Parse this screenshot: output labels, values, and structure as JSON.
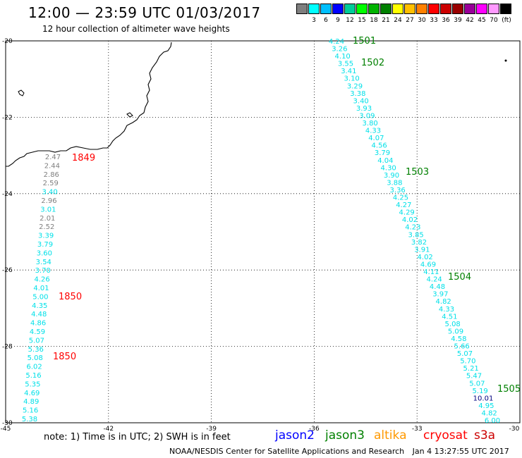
{
  "header": {
    "title": "12:00 — 23:59 UTC 01/03/2017",
    "subtitle": "12 hour collection of altimeter wave heights"
  },
  "legend": {
    "unit": "(ft)",
    "swatches": [
      {
        "color": "#7f7f7f",
        "label": ""
      },
      {
        "color": "#00ffff",
        "label": "3"
      },
      {
        "color": "#00bfff",
        "label": "6"
      },
      {
        "color": "#0000ff",
        "label": "9"
      },
      {
        "color": "#00cc99",
        "label": "12"
      },
      {
        "color": "#00ff00",
        "label": "15"
      },
      {
        "color": "#00b300",
        "label": "18"
      },
      {
        "color": "#008000",
        "label": "21"
      },
      {
        "color": "#ffff00",
        "label": "24"
      },
      {
        "color": "#ffbf00",
        "label": "27"
      },
      {
        "color": "#ff8000",
        "label": "30"
      },
      {
        "color": "#ff0000",
        "label": "33"
      },
      {
        "color": "#cc0000",
        "label": "36"
      },
      {
        "color": "#990000",
        "label": "39"
      },
      {
        "color": "#990099",
        "label": "42"
      },
      {
        "color": "#ff00ff",
        "label": "45"
      },
      {
        "color": "#ff99ff",
        "label": "70"
      },
      {
        "color": "#000000",
        "label": ""
      }
    ]
  },
  "axes": {
    "lon_ticks": [
      "-45",
      "-42",
      "-39",
      "-36",
      "-33",
      "-30"
    ],
    "lat_ticks": [
      "-20",
      "-22",
      "-24",
      "-26",
      "-28",
      "-30"
    ]
  },
  "track_colors": {
    "grey": "#808080",
    "cyan": "#00e0e8",
    "navy": "#000080",
    "red": "#ff0000",
    "green": "#008000"
  },
  "tracks": [
    {
      "name": "west-track",
      "points": [
        {
          "v": "2.47",
          "c": "grey"
        },
        {
          "v": "2.44",
          "c": "grey"
        },
        {
          "v": "2.86",
          "c": "grey"
        },
        {
          "v": "2.59",
          "c": "grey"
        },
        {
          "v": "3.40",
          "c": "cyan"
        },
        {
          "v": "2.96",
          "c": "grey"
        },
        {
          "v": "3.01",
          "c": "cyan"
        },
        {
          "v": "2.01",
          "c": "grey"
        },
        {
          "v": "2.52",
          "c": "grey"
        },
        {
          "v": "3.39",
          "c": "cyan"
        },
        {
          "v": "3.79",
          "c": "cyan"
        },
        {
          "v": "3.60",
          "c": "cyan"
        },
        {
          "v": "3.54",
          "c": "cyan"
        },
        {
          "v": "3.70",
          "c": "cyan"
        },
        {
          "v": "4.26",
          "c": "cyan"
        },
        {
          "v": "4.01",
          "c": "cyan"
        },
        {
          "v": "5.00",
          "c": "cyan"
        },
        {
          "v": "4.35",
          "c": "cyan"
        },
        {
          "v": "4.48",
          "c": "cyan"
        },
        {
          "v": "4.86",
          "c": "cyan"
        },
        {
          "v": "4.59",
          "c": "cyan"
        },
        {
          "v": "5.07",
          "c": "cyan"
        },
        {
          "v": "5.36",
          "c": "cyan"
        },
        {
          "v": "5.08",
          "c": "cyan"
        },
        {
          "v": "6.02",
          "c": "cyan"
        },
        {
          "v": "5.16",
          "c": "cyan"
        },
        {
          "v": "5.35",
          "c": "cyan"
        },
        {
          "v": "4.69",
          "c": "cyan"
        },
        {
          "v": "4.89",
          "c": "cyan"
        },
        {
          "v": "5.16",
          "c": "cyan"
        },
        {
          "v": "5.38",
          "c": "cyan"
        }
      ]
    },
    {
      "name": "east-track",
      "points": [
        {
          "v": "4.24",
          "c": "cyan"
        },
        {
          "v": "3.26",
          "c": "cyan"
        },
        {
          "v": "4.10",
          "c": "cyan"
        },
        {
          "v": "3.55",
          "c": "cyan"
        },
        {
          "v": "3.41",
          "c": "cyan"
        },
        {
          "v": "3.10",
          "c": "cyan"
        },
        {
          "v": "3.29",
          "c": "cyan"
        },
        {
          "v": "3.38",
          "c": "cyan"
        },
        {
          "v": "3.40",
          "c": "cyan"
        },
        {
          "v": "3.93",
          "c": "cyan"
        },
        {
          "v": "3.09",
          "c": "cyan"
        },
        {
          "v": "3.80",
          "c": "cyan"
        },
        {
          "v": "4.33",
          "c": "cyan"
        },
        {
          "v": "4.07",
          "c": "cyan"
        },
        {
          "v": "4.56",
          "c": "cyan"
        },
        {
          "v": "3.79",
          "c": "cyan"
        },
        {
          "v": "4.04",
          "c": "cyan"
        },
        {
          "v": "4.30",
          "c": "cyan"
        },
        {
          "v": "3.90",
          "c": "cyan"
        },
        {
          "v": "3.88",
          "c": "cyan"
        },
        {
          "v": "3.36",
          "c": "cyan"
        },
        {
          "v": "4.25",
          "c": "cyan"
        },
        {
          "v": "4.27",
          "c": "cyan"
        },
        {
          "v": "4.29",
          "c": "cyan"
        },
        {
          "v": "4.02",
          "c": "cyan"
        },
        {
          "v": "4.23",
          "c": "cyan"
        },
        {
          "v": "3.85",
          "c": "cyan"
        },
        {
          "v": "3.82",
          "c": "cyan"
        },
        {
          "v": "3.91",
          "c": "cyan"
        },
        {
          "v": "4.02",
          "c": "cyan"
        },
        {
          "v": "4.69",
          "c": "cyan"
        },
        {
          "v": "4.11",
          "c": "cyan"
        },
        {
          "v": "4.24",
          "c": "cyan"
        },
        {
          "v": "4.48",
          "c": "cyan"
        },
        {
          "v": "3.97",
          "c": "cyan"
        },
        {
          "v": "4.82",
          "c": "cyan"
        },
        {
          "v": "4.33",
          "c": "cyan"
        },
        {
          "v": "4.51",
          "c": "cyan"
        },
        {
          "v": "5.08",
          "c": "cyan"
        },
        {
          "v": "5.09",
          "c": "cyan"
        },
        {
          "v": "4.58",
          "c": "cyan"
        },
        {
          "v": "5.66",
          "c": "cyan"
        },
        {
          "v": "5.07",
          "c": "cyan"
        },
        {
          "v": "5.70",
          "c": "cyan"
        },
        {
          "v": "5.21",
          "c": "cyan"
        },
        {
          "v": "5.47",
          "c": "cyan"
        },
        {
          "v": "5.07",
          "c": "cyan"
        },
        {
          "v": "5.19",
          "c": "cyan"
        },
        {
          "v": "10.01",
          "c": "navy"
        },
        {
          "v": "4.95",
          "c": "cyan"
        },
        {
          "v": "4.82",
          "c": "cyan"
        },
        {
          "v": "6.00",
          "c": "cyan"
        }
      ]
    }
  ],
  "time_labels": [
    {
      "text": "1849",
      "c": "red"
    },
    {
      "text": "1850",
      "c": "red"
    },
    {
      "text": "1850",
      "c": "red"
    },
    {
      "text": "1501",
      "c": "green"
    },
    {
      "text": "1502",
      "c": "green"
    },
    {
      "text": "1503",
      "c": "green"
    },
    {
      "text": "1504",
      "c": "green"
    },
    {
      "text": "1505",
      "c": "green"
    }
  ],
  "note": "note: 1) Time is in UTC; 2) SWH is in feet",
  "satellites": [
    {
      "name": "jason2",
      "color": "#0000ff"
    },
    {
      "name": "jason3",
      "color": "#008000"
    },
    {
      "name": "altika",
      "color": "#ff9900"
    },
    {
      "name": "cryosat",
      "color": "#ff0000"
    },
    {
      "name": "s3a",
      "color": "#cc0000"
    }
  ],
  "footer": {
    "org": "NOAA/NESDIS Center for Satellite Applications and Research",
    "timestamp": "Jan  4 13:27:55 UTC 2017"
  }
}
